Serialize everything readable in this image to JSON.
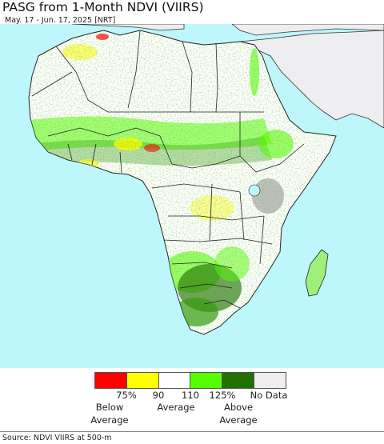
{
  "map": {
    "title": "PASG from 1-Month NDVI (VIIRS)",
    "subtitle": "May. 17 - Jun. 17, 2025 [NRT]",
    "source": "Source: NDVI VIIRS at 500-m",
    "colors": {
      "ocean": "#bdf6fb",
      "no_data_land": "#eeedef",
      "below": "#ff0000",
      "slightly_below": "#ffff00",
      "average": "#ffffff",
      "slightly_above": "#55ff00",
      "above": "#217000"
    }
  },
  "legend": {
    "swatches": [
      {
        "color": "#ff0000"
      },
      {
        "color": "#ffff00"
      },
      {
        "color": "#ffffff"
      },
      {
        "color": "#55ff00"
      },
      {
        "color": "#217000"
      },
      {
        "color": "#eeedef"
      }
    ],
    "ticks": [
      "75%",
      "90",
      "110",
      "125%"
    ],
    "no_data_label": "No Data",
    "below_label_1": "Below",
    "below_label_2": "Average",
    "average_label": "Average",
    "above_label_1": "Above",
    "above_label_2": "Average"
  }
}
